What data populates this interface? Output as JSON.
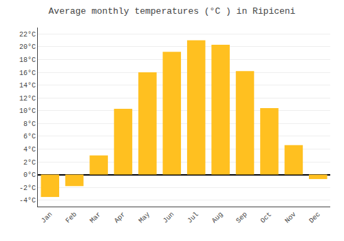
{
  "chart_data": {
    "type": "bar",
    "title": "Average monthly temperatures (°C ) in Ripiceni",
    "categories": [
      "Jan",
      "Feb",
      "Mar",
      "Apr",
      "May",
      "Jun",
      "Jul",
      "Aug",
      "Sep",
      "Oct",
      "Nov",
      "Dec"
    ],
    "values": [
      -3.5,
      -1.8,
      3.0,
      10.3,
      16.0,
      19.2,
      21.0,
      20.3,
      16.2,
      10.4,
      4.6,
      -0.7
    ],
    "color": "#FFC020",
    "ylim": [
      -5,
      23
    ],
    "yticks": [
      {
        "value": -4,
        "label": "-4°C"
      },
      {
        "value": -2,
        "label": "-2°C"
      },
      {
        "value": 0,
        "label": "0°C"
      },
      {
        "value": 2,
        "label": "2°C"
      },
      {
        "value": 4,
        "label": "4°C"
      },
      {
        "value": 6,
        "label": "6°C"
      },
      {
        "value": 8,
        "label": "8°C"
      },
      {
        "value": 10,
        "label": "10°C"
      },
      {
        "value": 12,
        "label": "12°C"
      },
      {
        "value": 14,
        "label": "14°C"
      },
      {
        "value": 16,
        "label": "16°C"
      },
      {
        "value": 18,
        "label": "18°C"
      },
      {
        "value": 20,
        "label": "20°C"
      },
      {
        "value": 22,
        "label": "22°C"
      }
    ],
    "grid": true
  }
}
